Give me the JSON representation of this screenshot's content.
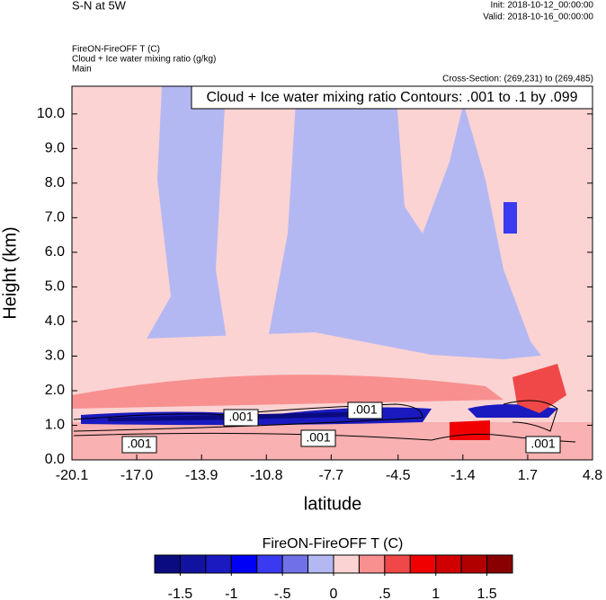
{
  "chart_data": {
    "type": "contour",
    "title": "S-N at 5W",
    "init": "Init: 2018-10-12_00:00:00",
    "valid": "Valid: 2018-10-16_00:00:00",
    "field_title": "FireON-FireOFF T   (C)",
    "contour_title": "Cloud + Ice water mixing ratio   (g/kg)",
    "domain": "Main",
    "cross_section": "Cross-Section: (269,231) to (269,485)",
    "contour_info": "Cloud + Ice water mixing ratio Contours: .001 to .1 by .099",
    "xlabel": "latitude",
    "ylabel": "Height (km)",
    "xlim": [
      -20.1,
      4.8
    ],
    "ylim": [
      0,
      10.8
    ],
    "xticks": [
      -20.1,
      {
        "value": -17,
        "label": "-17.0"
      },
      -13.9,
      -10.8,
      -7.7,
      -4.5,
      -1.4,
      1.7,
      4.8
    ],
    "yticks": [
      {
        "value": 0,
        "label": "0.0"
      },
      {
        "value": 1,
        "label": "1.0"
      },
      {
        "value": 2,
        "label": "2.0"
      },
      {
        "value": 3,
        "label": "3.0"
      },
      {
        "value": 4,
        "label": "4.0"
      },
      {
        "value": 5,
        "label": "5.0"
      },
      {
        "value": 6,
        "label": "6.0"
      },
      {
        "value": 7,
        "label": "7.0"
      },
      {
        "value": 8,
        "label": "8.0"
      },
      {
        "value": 9,
        "label": "9.0"
      },
      {
        "value": 10,
        "label": "10.0"
      }
    ],
    "contour_labels": [
      ".001",
      ".001",
      ".001",
      ".001",
      ".001"
    ],
    "colorbar": {
      "title": "FireON-FireOFF T  (C)",
      "lim": [
        -1.75,
        1.75
      ],
      "colors": [
        "#0b0b80",
        "#1212a0",
        "#1a1ac0",
        "#0000f5",
        "#3a3af0",
        "#7070e8",
        "#b4b8f2",
        "#fbd3d3",
        "#f89090",
        "#f04848",
        "#f00000",
        "#d00000",
        "#b00000",
        "#8a0000"
      ],
      "ticks": [
        -1.5,
        -1,
        {
          "value": -0.5,
          "label": "-.5"
        },
        0,
        {
          "value": 0.5,
          "label": ".5"
        },
        1,
        1.5
      ]
    }
  }
}
